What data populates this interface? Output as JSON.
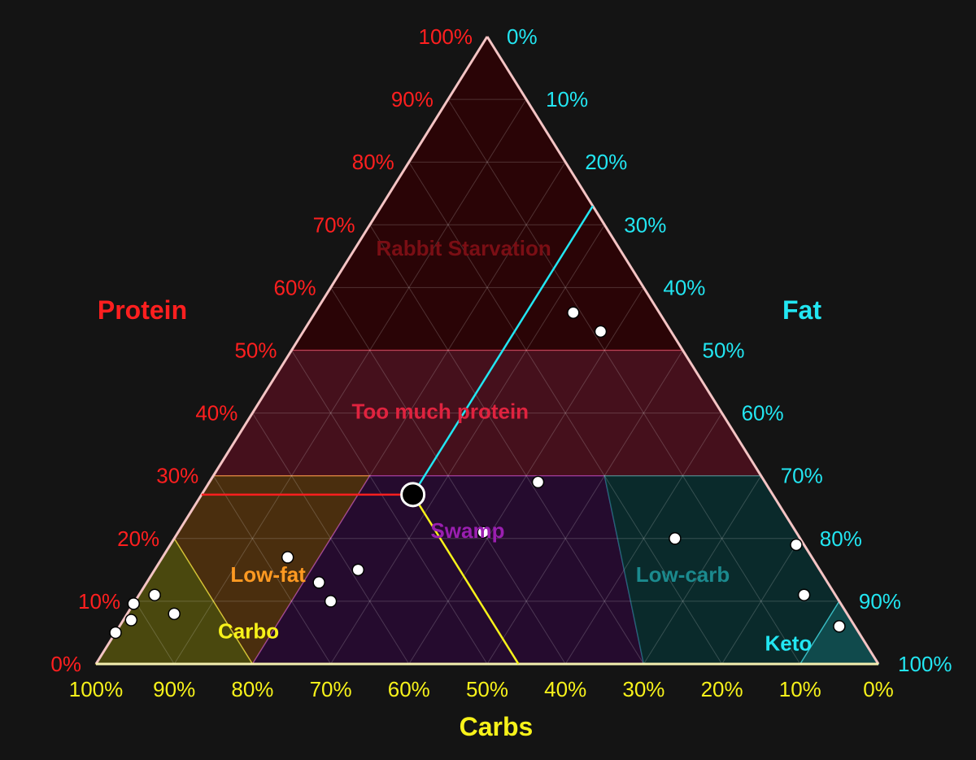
{
  "chart_data": {
    "type": "ternary",
    "axes": {
      "protein": {
        "label": "Protein",
        "color": "#ff1f1f",
        "ticks": [
          "0%",
          "10%",
          "20%",
          "30%",
          "40%",
          "50%",
          "60%",
          "70%",
          "80%",
          "90%",
          "100%"
        ]
      },
      "fat": {
        "label": "Fat",
        "color": "#22e6f2",
        "ticks": [
          "0%",
          "10%",
          "20%",
          "30%",
          "40%",
          "50%",
          "60%",
          "70%",
          "80%",
          "90%",
          "100%"
        ]
      },
      "carbs": {
        "label": "Carbs",
        "color": "#f7f21a",
        "ticks": [
          "100%",
          "90%",
          "80%",
          "70%",
          "60%",
          "50%",
          "40%",
          "30%",
          "20%",
          "10%",
          "0%"
        ]
      }
    },
    "regions": [
      {
        "label": "Rabbit Starvation",
        "fill": "#2a0406",
        "labelColor": "#7a0e14",
        "polygon": [
          [
            50,
            50,
            0
          ],
          [
            100,
            0,
            0
          ],
          [
            50,
            0,
            50
          ]
        ],
        "labelAt": [
          66,
          20,
          14
        ]
      },
      {
        "label": "Too much protein",
        "fill": "#45101c",
        "labelColor": "#e0233f",
        "polygon": [
          [
            30,
            70,
            0
          ],
          [
            50,
            50,
            0
          ],
          [
            50,
            0,
            50
          ],
          [
            30,
            0,
            70
          ]
        ],
        "labelAt": [
          40,
          36,
          24
        ]
      },
      {
        "label": "Low-fat",
        "fill": "#4a2e0e",
        "labelColor": "#ff9a22",
        "polygon": [
          [
            20,
            80,
            0
          ],
          [
            30,
            70,
            0
          ],
          [
            30,
            50,
            20
          ],
          [
            0,
            80,
            20
          ],
          [
            0,
            80,
            20
          ]
        ],
        "labelAt": [
          14,
          71,
          15
        ]
      },
      {
        "label": "Carbo",
        "fill": "#4a480e",
        "labelColor": "#f7f21a",
        "polygon": [
          [
            0,
            100,
            0
          ],
          [
            20,
            80,
            0
          ],
          [
            0,
            80,
            20
          ]
        ],
        "labelAt": [
          5,
          78,
          17
        ]
      },
      {
        "label": "Swamp",
        "fill": "#250b2e",
        "labelColor": "#9a1fb0",
        "polygon": [
          [
            30,
            50,
            20
          ],
          [
            30,
            20,
            50
          ],
          [
            0,
            30,
            70
          ],
          [
            0,
            80,
            20
          ]
        ],
        "labelAt": [
          21,
          42,
          37
        ]
      },
      {
        "label": "Low-carb",
        "fill": "#0a2a2b",
        "labelColor": "#1b8a8e",
        "polygon": [
          [
            30,
            20,
            50
          ],
          [
            30,
            0,
            70
          ],
          [
            10,
            0,
            90
          ],
          [
            0,
            10,
            90
          ],
          [
            0,
            30,
            70
          ]
        ],
        "labelAt": [
          14,
          18,
          68
        ]
      },
      {
        "label": "Keto",
        "fill": "#104a4c",
        "labelColor": "#22e6f2",
        "polygon": [
          [
            10,
            0,
            90
          ],
          [
            0,
            0,
            100
          ],
          [
            0,
            10,
            90
          ]
        ],
        "labelAt": [
          3,
          10,
          87
        ]
      }
    ],
    "points": [
      [
        56,
        11,
        33
      ],
      [
        53,
        9,
        38
      ],
      [
        29,
        29,
        42
      ],
      [
        20,
        16,
        64
      ],
      [
        21,
        40,
        39
      ],
      [
        17,
        67,
        16
      ],
      [
        15,
        59,
        26
      ],
      [
        13,
        65,
        22
      ],
      [
        10,
        65,
        25
      ],
      [
        11,
        87,
        2
      ],
      [
        8,
        86,
        6
      ],
      [
        10,
        94,
        -4
      ],
      [
        7,
        92,
        1
      ],
      [
        5,
        95,
        0
      ],
      [
        19,
        1,
        80
      ],
      [
        11,
        4,
        85
      ],
      [
        6,
        2,
        92
      ]
    ],
    "highlight": {
      "protein": 27,
      "carbs": 46,
      "fat": 27
    }
  }
}
